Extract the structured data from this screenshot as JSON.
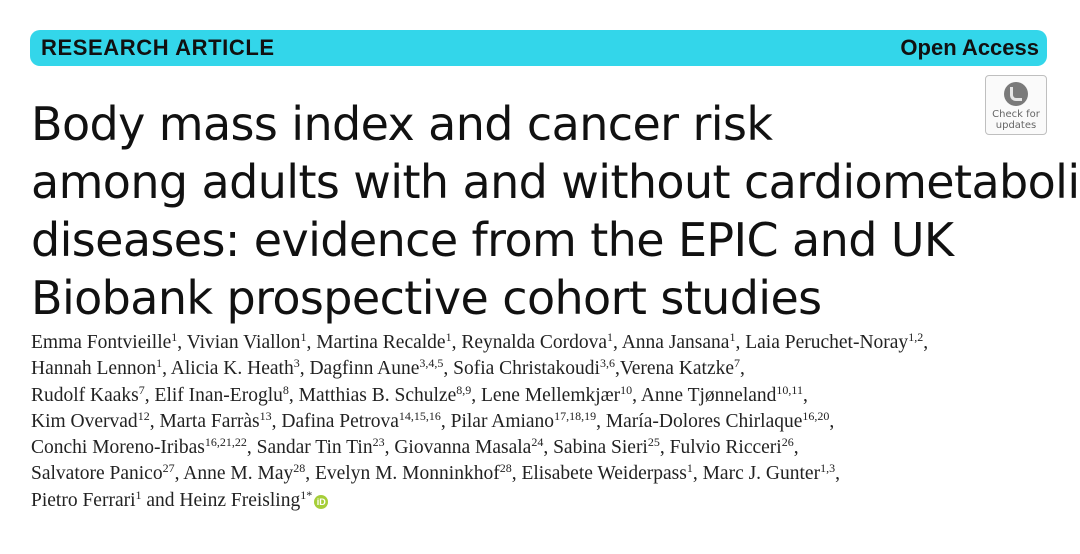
{
  "banner": {
    "type_label": "RESEARCH ARTICLE",
    "access_label": "Open Access"
  },
  "badge": {
    "icon": "check-for-updates-icon",
    "line1": "Check for",
    "line2": "updates"
  },
  "title_lines": [
    "Body mass index and cancer risk",
    "among adults with and without cardiometabolic",
    "diseases: evidence from the EPIC and UK",
    "Biobank prospective cohort studies"
  ],
  "author_lines": [
    [
      {
        "name": "Emma Fontvieille",
        "aff": "1",
        "sep": ", "
      },
      {
        "name": "Vivian Viallon",
        "aff": "1",
        "sep": ", "
      },
      {
        "name": "Martina Recalde",
        "aff": "1",
        "sep": ", "
      },
      {
        "name": "Reynalda Cordova",
        "aff": "1",
        "sep": ", "
      },
      {
        "name": "Anna Jansana",
        "aff": "1",
        "sep": ", "
      },
      {
        "name": "Laia Peruchet-Noray",
        "aff": "1,2",
        "sep": ","
      }
    ],
    [
      {
        "name": "Hannah Lennon",
        "aff": "1",
        "sep": ", "
      },
      {
        "name": "Alicia K. Heath",
        "aff": "3",
        "sep": ", "
      },
      {
        "name": "Dagfinn Aune",
        "aff": "3,4,5",
        "sep": ", "
      },
      {
        "name": "Sofia Christakoudi",
        "aff": "3,6",
        "sep": ","
      },
      {
        "name": "Verena Katzke",
        "aff": "7",
        "sep": ","
      }
    ],
    [
      {
        "name": "Rudolf Kaaks",
        "aff": "7",
        "sep": ", "
      },
      {
        "name": "Elif Inan-Eroglu",
        "aff": "8",
        "sep": ", "
      },
      {
        "name": "Matthias B. Schulze",
        "aff": "8,9",
        "sep": ", "
      },
      {
        "name": "Lene Mellemkjær",
        "aff": "10",
        "sep": ", "
      },
      {
        "name": "Anne Tjønneland",
        "aff": "10,11",
        "sep": ","
      }
    ],
    [
      {
        "name": "Kim Overvad",
        "aff": "12",
        "sep": ", "
      },
      {
        "name": "Marta Farràs",
        "aff": "13",
        "sep": ", "
      },
      {
        "name": "Dafina Petrova",
        "aff": "14,15,16",
        "sep": ", "
      },
      {
        "name": "Pilar Amiano",
        "aff": "17,18,19",
        "sep": ", "
      },
      {
        "name": "María-Dolores Chirlaque",
        "aff": "16,20",
        "sep": ","
      }
    ],
    [
      {
        "name": "Conchi Moreno-Iribas",
        "aff": "16,21,22",
        "sep": ", "
      },
      {
        "name": "Sandar Tin Tin",
        "aff": "23",
        "sep": ", "
      },
      {
        "name": "Giovanna Masala",
        "aff": "24",
        "sep": ", "
      },
      {
        "name": "Sabina Sieri",
        "aff": "25",
        "sep": ", "
      },
      {
        "name": "Fulvio Ricceri",
        "aff": "26",
        "sep": ","
      }
    ],
    [
      {
        "name": "Salvatore Panico",
        "aff": "27",
        "sep": ", "
      },
      {
        "name": "Anne M. May",
        "aff": "28",
        "sep": ", "
      },
      {
        "name": "Evelyn M. Monninkhof",
        "aff": "28",
        "sep": ", "
      },
      {
        "name": "Elisabete Weiderpass",
        "aff": "1",
        "sep": ", "
      },
      {
        "name": "Marc J. Gunter",
        "aff": "1,3",
        "sep": ","
      }
    ],
    [
      {
        "name": "Pietro Ferrari",
        "aff": "1",
        "sep": " and "
      },
      {
        "name": "Heinz Freisling",
        "aff": "1*",
        "sep": "",
        "orcid": "iD"
      }
    ]
  ]
}
